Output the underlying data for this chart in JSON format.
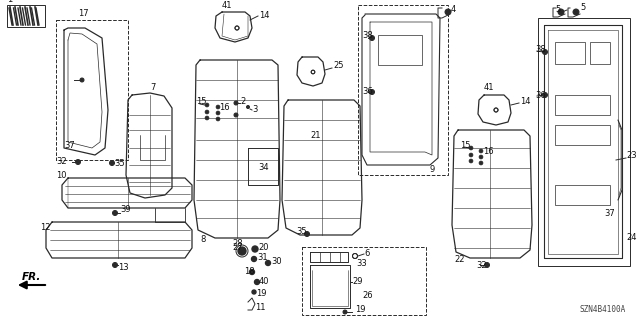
{
  "background_color": "#ffffff",
  "diagram_code": "SZN4B4100A",
  "line_color": "#2a2a2a",
  "label_fontsize": 6.0,
  "label_color": "#111111"
}
